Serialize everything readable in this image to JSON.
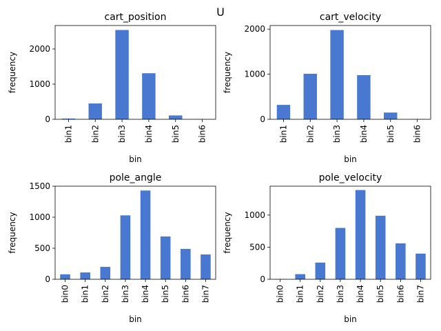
{
  "figure": {
    "suptitle": "U"
  },
  "chart_data": [
    {
      "type": "bar",
      "title": "cart_position",
      "xlabel": "bin",
      "ylabel": "frequency",
      "categories": [
        "bin1",
        "bin2",
        "bin3",
        "bin4",
        "bin5",
        "bin6"
      ],
      "values": [
        20,
        450,
        2540,
        1310,
        110,
        5
      ],
      "ylim": [
        0,
        2667
      ],
      "yticks": [
        0,
        1000,
        2000
      ],
      "color": "#4878d0"
    },
    {
      "type": "bar",
      "title": "cart_velocity",
      "xlabel": "bin",
      "ylabel": "frequency",
      "categories": [
        "bin1",
        "bin2",
        "bin3",
        "bin4",
        "bin5",
        "bin6"
      ],
      "values": [
        320,
        1010,
        1980,
        980,
        150,
        5
      ],
      "ylim": [
        0,
        2080
      ],
      "yticks": [
        0,
        1000,
        2000
      ],
      "color": "#4878d0"
    },
    {
      "type": "bar",
      "title": "pole_angle",
      "xlabel": "bin",
      "ylabel": "frequency",
      "categories": [
        "bin0",
        "bin1",
        "bin2",
        "bin3",
        "bin4",
        "bin5",
        "bin6",
        "bin7"
      ],
      "values": [
        80,
        110,
        200,
        1030,
        1430,
        690,
        490,
        400
      ],
      "ylim": [
        0,
        1500
      ],
      "yticks": [
        0,
        500,
        1000,
        1500
      ],
      "color": "#4878d0"
    },
    {
      "type": "bar",
      "title": "pole_velocity",
      "xlabel": "bin",
      "ylabel": "frequency",
      "categories": [
        "bin0",
        "bin1",
        "bin2",
        "bin3",
        "bin4",
        "bin5",
        "bin6",
        "bin7"
      ],
      "values": [
        5,
        80,
        260,
        800,
        1390,
        990,
        560,
        400
      ],
      "ylim": [
        0,
        1450
      ],
      "yticks": [
        0,
        500,
        1000
      ],
      "color": "#4878d0"
    }
  ]
}
